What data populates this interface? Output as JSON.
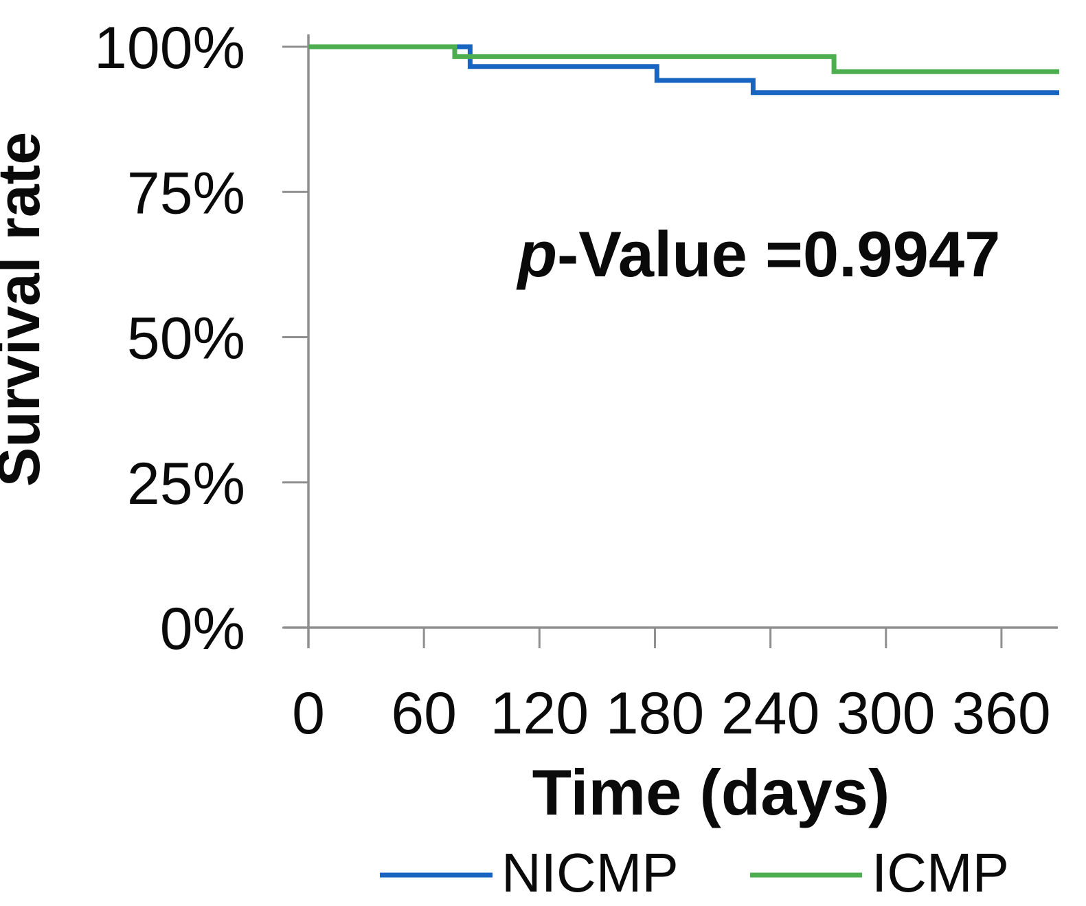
{
  "chart_data": {
    "type": "line",
    "subtype": "step-survival",
    "title": "",
    "xlabel": "Time (days)",
    "ylabel": "Survival rate",
    "xlim": [
      0,
      390
    ],
    "ylim": [
      0,
      100
    ],
    "grid": false,
    "legend_position": "bottom",
    "x_ticks": [
      {
        "value": 0,
        "label": "0"
      },
      {
        "value": 60,
        "label": "60"
      },
      {
        "value": 120,
        "label": "120"
      },
      {
        "value": 180,
        "label": "180"
      },
      {
        "value": 240,
        "label": "240"
      },
      {
        "value": 300,
        "label": "300"
      },
      {
        "value": 360,
        "label": "360"
      }
    ],
    "y_ticks": [
      {
        "value": 100,
        "label": "100%"
      },
      {
        "value": 75,
        "label": "75%"
      },
      {
        "value": 50,
        "label": "50%"
      },
      {
        "value": 25,
        "label": "25%"
      },
      {
        "value": 0,
        "label": "0%"
      }
    ],
    "annotation": {
      "p_italic": "p",
      "text_rest": "-Value =0.9947"
    },
    "series": [
      {
        "name": "NICMP",
        "color": "#1865C1",
        "step_points": [
          {
            "t": 0,
            "survival_pct": 100
          },
          {
            "t": 84,
            "survival_pct": 96.6
          },
          {
            "t": 181,
            "survival_pct": 94.2
          },
          {
            "t": 231,
            "survival_pct": 92.1
          },
          {
            "t": 390,
            "survival_pct": 92.1
          }
        ]
      },
      {
        "name": "ICMP",
        "color": "#4CAE4F",
        "step_points": [
          {
            "t": 0,
            "survival_pct": 100
          },
          {
            "t": 76,
            "survival_pct": 98.3
          },
          {
            "t": 273,
            "survival_pct": 95.7
          },
          {
            "t": 390,
            "survival_pct": 95.7
          }
        ]
      }
    ],
    "axis_color": "#8F8F8F",
    "text_color": "#0a0a0a"
  }
}
